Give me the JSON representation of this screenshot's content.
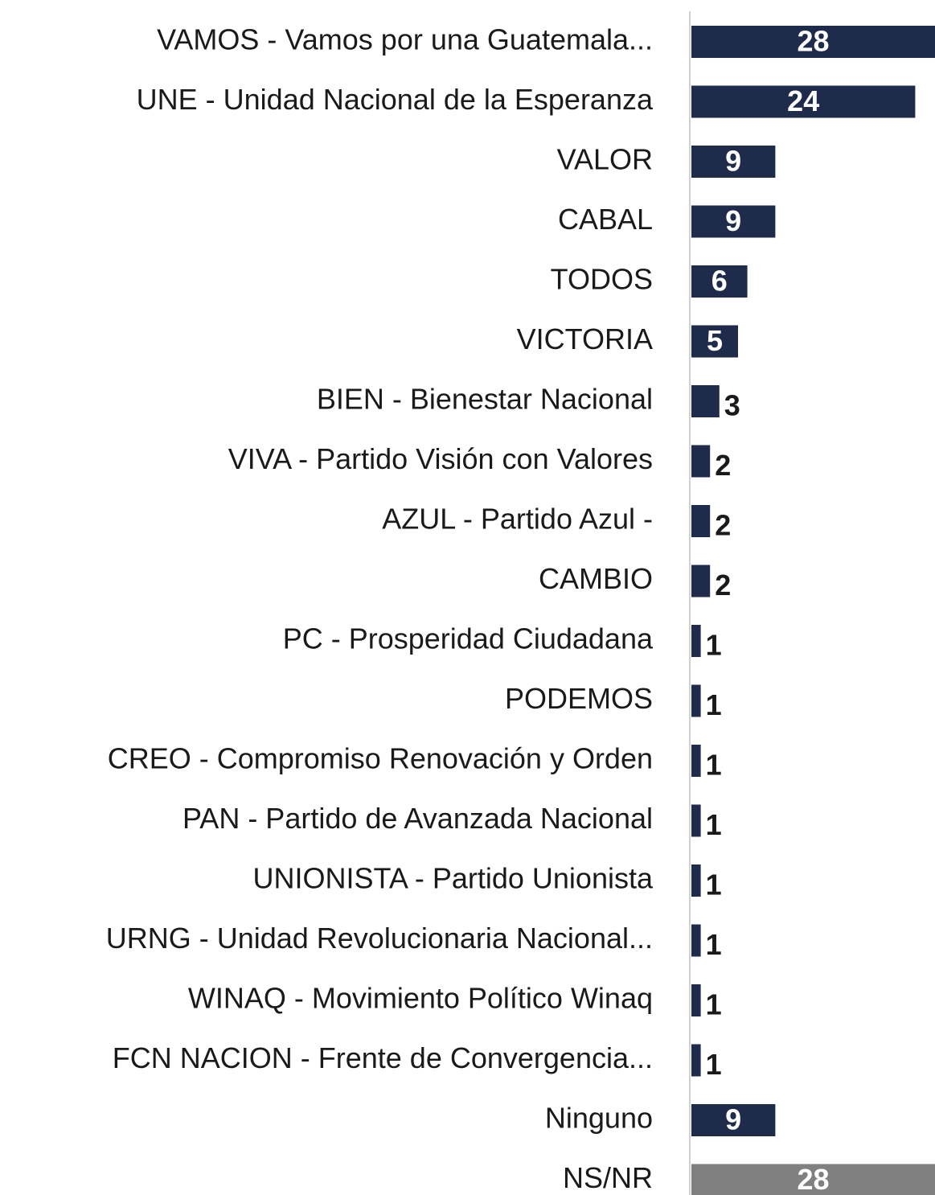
{
  "chart_data": {
    "type": "barh",
    "categories": [
      "VAMOS - Vamos por una Guatemala...",
      "UNE - Unidad Nacional de la Esperanza",
      "VALOR",
      "CABAL",
      "TODOS",
      "VICTORIA",
      "BIEN - Bienestar Nacional",
      "VIVA - Partido Visión con Valores",
      "AZUL - Partido Azul -",
      "CAMBIO",
      "PC - Prosperidad Ciudadana",
      "PODEMOS",
      "CREO - Compromiso Renovación y Orden",
      "PAN - Partido de Avanzada Nacional",
      "UNIONISTA - Partido Unionista",
      "URNG - Unidad Revolucionaria Nacional...",
      "WINAQ - Movimiento Político Winaq",
      "FCN NACION - Frente de Convergencia...",
      "Ninguno",
      "NS/NR"
    ],
    "values": [
      28,
      24,
      9,
      9,
      6,
      5,
      3,
      2,
      2,
      2,
      1,
      1,
      1,
      1,
      1,
      1,
      1,
      1,
      9,
      28
    ],
    "colors": [
      "#1f2b4a",
      "#1f2b4a",
      "#1f2b4a",
      "#1f2b4a",
      "#1f2b4a",
      "#1f2b4a",
      "#1f2b4a",
      "#1f2b4a",
      "#1f2b4a",
      "#1f2b4a",
      "#1f2b4a",
      "#1f2b4a",
      "#1f2b4a",
      "#1f2b4a",
      "#1f2b4a",
      "#1f2b4a",
      "#1f2b4a",
      "#1f2b4a",
      "#1f2b4a",
      "#808080"
    ]
  }
}
